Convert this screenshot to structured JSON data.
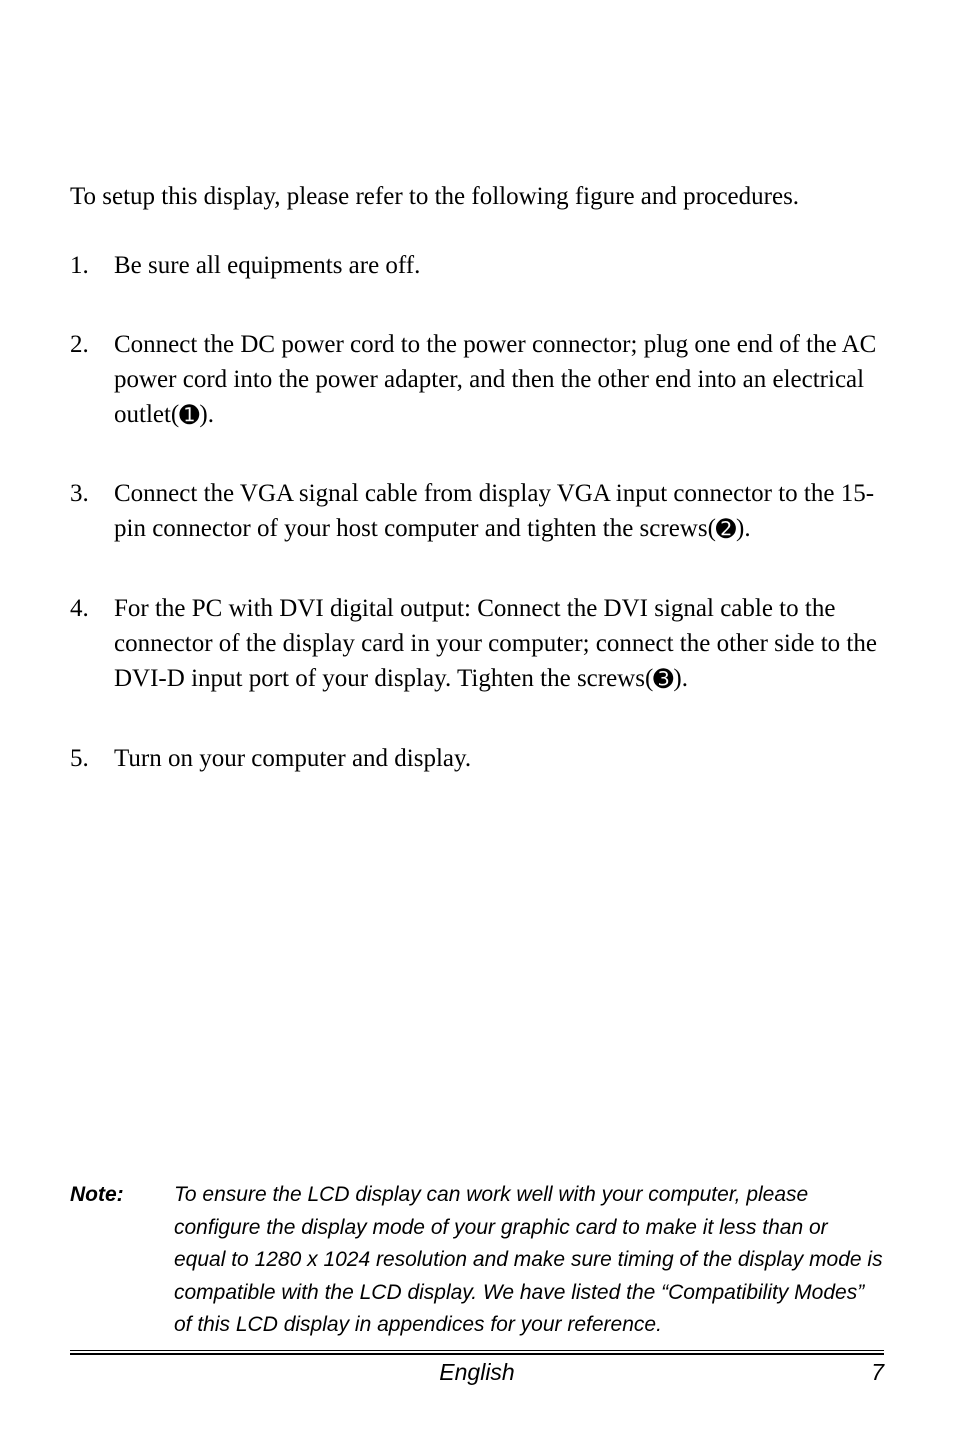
{
  "intro": "To setup this display, please refer to the following figure and procedures.",
  "steps": [
    {
      "n": "1.",
      "t": "Be sure all equipments are off."
    },
    {
      "n": "2.",
      "t_parts": [
        "Connect the DC power cord to the power connector; plug one end of the AC power cord into the power adapter, and then the other end into an electrical outlet(",
        "➊",
        ")."
      ]
    },
    {
      "n": "3.",
      "t_parts": [
        "Connect the VGA signal cable from display VGA input connector to the 15-pin connector of your host computer and tighten the screws(",
        "➋",
        ")."
      ]
    },
    {
      "n": "4.",
      "t_parts": [
        "For the PC with DVI digital output: Connect the DVI signal cable to the connector of the display card in your computer; connect the other side to the DVI-D input port of your display. Tighten the screws(",
        "➌",
        ")."
      ]
    },
    {
      "n": "5.",
      "t": "Turn on your computer and display."
    }
  ],
  "note": {
    "label": "Note:",
    "text": "To ensure the LCD display can work well with your computer, please configure the display mode of your graphic card to make it less than or equal to 1280 x 1024 resolution and make sure timing of the display mode is compatible with the LCD display. We have listed the “Compatibility Modes” of this LCD display in appendices for your reference."
  },
  "footer": {
    "center": "English",
    "page": "7"
  },
  "colors": {
    "text": "#000000",
    "background": "#ffffff",
    "rule": "#000000"
  }
}
